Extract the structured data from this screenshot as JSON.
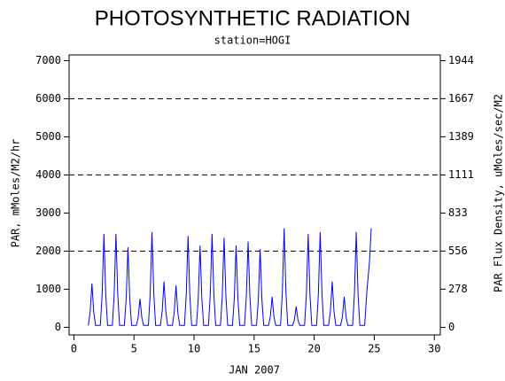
{
  "chart_data": {
    "type": "line",
    "title": "PHOTOSYNTHETIC RADIATION",
    "subtitle": "station=HOGI",
    "xlabel": "JAN 2007",
    "ylabel": "PAR, mMoles/M2/hr",
    "y2label": "PAR Flux Density, uMoles/sec/M2",
    "xlim": [
      -0.4,
      30.5
    ],
    "xticks": [
      0,
      5,
      10,
      15,
      20,
      25,
      30
    ],
    "ylim": [
      -200,
      7150
    ],
    "yticks": [
      0,
      1000,
      2000,
      3000,
      4000,
      5000,
      6000,
      7000
    ],
    "y2lim": [
      -55.5,
      1985.6
    ],
    "y2ticks": [
      0,
      278,
      556,
      833,
      1111,
      1389,
      1667,
      1944
    ],
    "grid_lines": [
      2000,
      4000,
      6000
    ],
    "x": [
      1.2,
      1.35,
      1.5,
      1.65,
      1.8,
      2.2,
      2.35,
      2.5,
      2.65,
      2.8,
      3.2,
      3.35,
      3.5,
      3.65,
      3.8,
      4.2,
      4.35,
      4.5,
      4.65,
      4.8,
      5.2,
      5.35,
      5.5,
      5.65,
      5.8,
      6.2,
      6.35,
      6.5,
      6.65,
      6.8,
      7.2,
      7.35,
      7.5,
      7.65,
      7.8,
      8.2,
      8.35,
      8.5,
      8.65,
      8.8,
      9.2,
      9.35,
      9.5,
      9.65,
      9.8,
      10.2,
      10.35,
      10.5,
      10.65,
      10.8,
      11.2,
      11.35,
      11.5,
      11.65,
      11.8,
      12.2,
      12.35,
      12.5,
      12.65,
      12.8,
      13.2,
      13.35,
      13.5,
      13.65,
      13.8,
      14.2,
      14.35,
      14.5,
      14.65,
      14.8,
      15.2,
      15.35,
      15.5,
      15.65,
      15.8,
      16.2,
      16.35,
      16.5,
      16.65,
      16.8,
      17.2,
      17.35,
      17.5,
      17.65,
      17.8,
      18.2,
      18.35,
      18.5,
      18.65,
      18.8,
      19.2,
      19.35,
      19.5,
      19.65,
      19.8,
      20.2,
      20.35,
      20.5,
      20.65,
      20.8,
      21.2,
      21.35,
      21.5,
      21.65,
      21.8,
      22.2,
      22.35,
      22.5,
      22.65,
      22.8,
      23.2,
      23.35,
      23.5,
      23.65,
      23.8,
      24.2,
      24.4,
      24.6,
      24.75
    ],
    "series": [
      {
        "name": "PAR",
        "color": "#0000ff",
        "values": [
          50,
          400,
          1150,
          400,
          50,
          50,
          860,
          2450,
          860,
          50,
          50,
          860,
          2450,
          860,
          50,
          50,
          740,
          2100,
          740,
          50,
          50,
          260,
          750,
          260,
          50,
          50,
          880,
          2500,
          880,
          50,
          50,
          420,
          1200,
          420,
          50,
          50,
          390,
          1100,
          390,
          50,
          50,
          840,
          2400,
          840,
          50,
          50,
          750,
          2150,
          750,
          50,
          50,
          860,
          2450,
          860,
          50,
          50,
          820,
          2350,
          820,
          50,
          50,
          750,
          2150,
          750,
          50,
          50,
          790,
          2250,
          790,
          50,
          50,
          720,
          2050,
          720,
          50,
          50,
          280,
          800,
          280,
          50,
          50,
          910,
          2600,
          910,
          50,
          50,
          190,
          550,
          190,
          50,
          50,
          860,
          2450,
          860,
          50,
          50,
          880,
          2500,
          880,
          50,
          50,
          420,
          1200,
          420,
          50,
          50,
          280,
          800,
          280,
          50,
          50,
          880,
          2500,
          880,
          50,
          50,
          1000,
          1700,
          2600
        ]
      }
    ]
  }
}
